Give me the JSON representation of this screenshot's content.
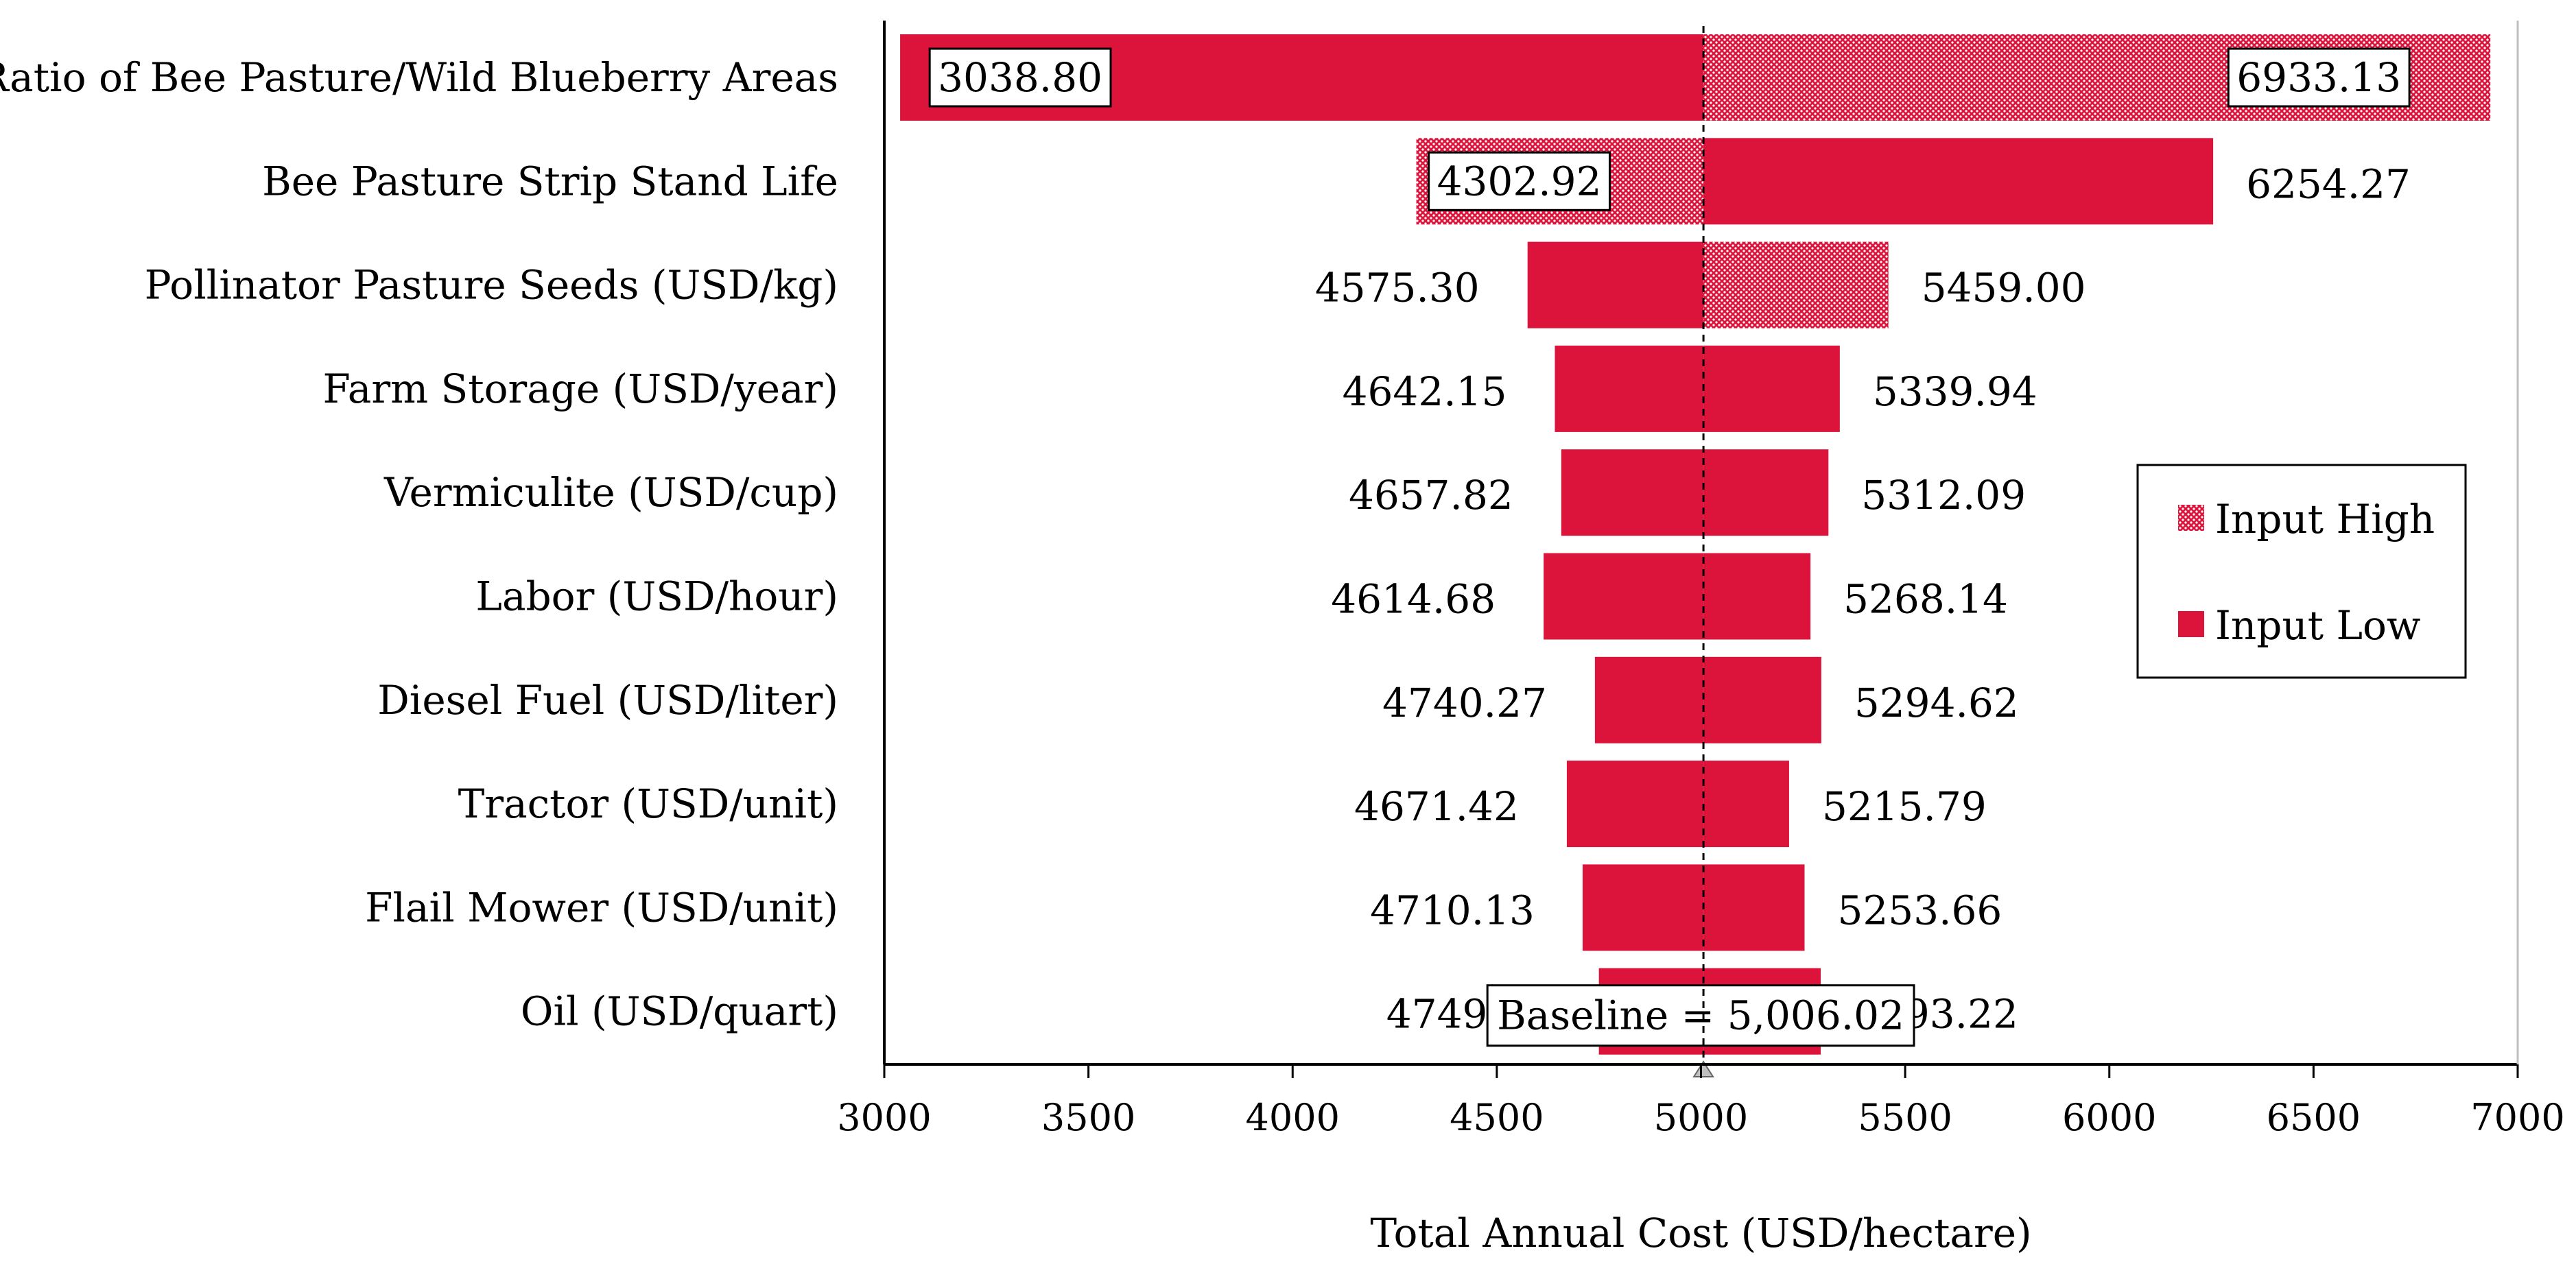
{
  "chart_data": {
    "type": "bar",
    "subtype": "tornado",
    "xlabel": "Total Annual Cost (USD/hectare)",
    "ylabel": "",
    "xlim": [
      3000,
      7000
    ],
    "x_ticks": [
      3000,
      3500,
      4000,
      4500,
      5000,
      5500,
      6000,
      6500,
      7000
    ],
    "baseline": 5006.02,
    "baseline_label": "Baseline = 5,006.02",
    "categories": [
      "Ratio of Bee Pasture/Wild Blueberry Areas",
      "Bee Pasture Strip Stand Life",
      "Pollinator Pasture Seeds (USD/kg)",
      "Farm Storage (USD/year)",
      "Vermiculite (USD/cup)",
      "Labor (USD/hour)",
      "Diesel Fuel (USD/liter)",
      "Tractor (USD/unit)",
      "Flail Mower (USD/unit)",
      "Oil (USD/quart)"
    ],
    "bars": [
      {
        "low": 3038.8,
        "high": 6933.13,
        "low_label": "3038.80",
        "high_label": "6933.13",
        "left_style": "solid",
        "right_style": "pattern",
        "boxed_labels": true
      },
      {
        "low": 4302.92,
        "high": 6254.27,
        "low_label": "4302.92",
        "high_label": "6254.27",
        "left_style": "pattern",
        "right_style": "solid",
        "boxed_labels": false,
        "boxed_low": true
      },
      {
        "low": 4575.3,
        "high": 5459.0,
        "low_label": "4575.30",
        "high_label": "5459.00",
        "left_style": "solid",
        "right_style": "pattern",
        "boxed_labels": false
      },
      {
        "low": 4642.15,
        "high": 5339.94,
        "low_label": "4642.15",
        "high_label": "5339.94",
        "left_style": "solid",
        "right_style": "solid",
        "boxed_labels": false
      },
      {
        "low": 4657.82,
        "high": 5312.09,
        "low_label": "4657.82",
        "high_label": "5312.09",
        "left_style": "solid",
        "right_style": "solid",
        "boxed_labels": false
      },
      {
        "low": 4614.68,
        "high": 5268.14,
        "low_label": "4614.68",
        "high_label": "5268.14",
        "left_style": "solid",
        "right_style": "solid",
        "boxed_labels": false
      },
      {
        "low": 4740.27,
        "high": 5294.62,
        "low_label": "4740.27",
        "high_label": "5294.62",
        "left_style": "solid",
        "right_style": "solid",
        "boxed_labels": false
      },
      {
        "low": 4671.42,
        "high": 5215.79,
        "low_label": "4671.42",
        "high_label": "5215.79",
        "left_style": "solid",
        "right_style": "solid",
        "boxed_labels": false
      },
      {
        "low": 4710.13,
        "high": 5253.66,
        "low_label": "4710.13",
        "high_label": "5253.66",
        "left_style": "solid",
        "right_style": "solid",
        "boxed_labels": false
      },
      {
        "low": 4749.96,
        "high": 5293.22,
        "low_label": "4749.96",
        "high_label": "5293.22",
        "left_style": "solid",
        "right_style": "solid",
        "boxed_labels": false
      }
    ],
    "legend": {
      "position": "right",
      "entries": [
        {
          "label": "Input High",
          "style": "pattern"
        },
        {
          "label": "Input Low",
          "style": "solid"
        }
      ]
    },
    "colors": {
      "bar": "#DC143C",
      "pattern_dot": "#FFFFFF",
      "axis": "#000000",
      "baseline_marker": "#BFBFBF"
    }
  }
}
